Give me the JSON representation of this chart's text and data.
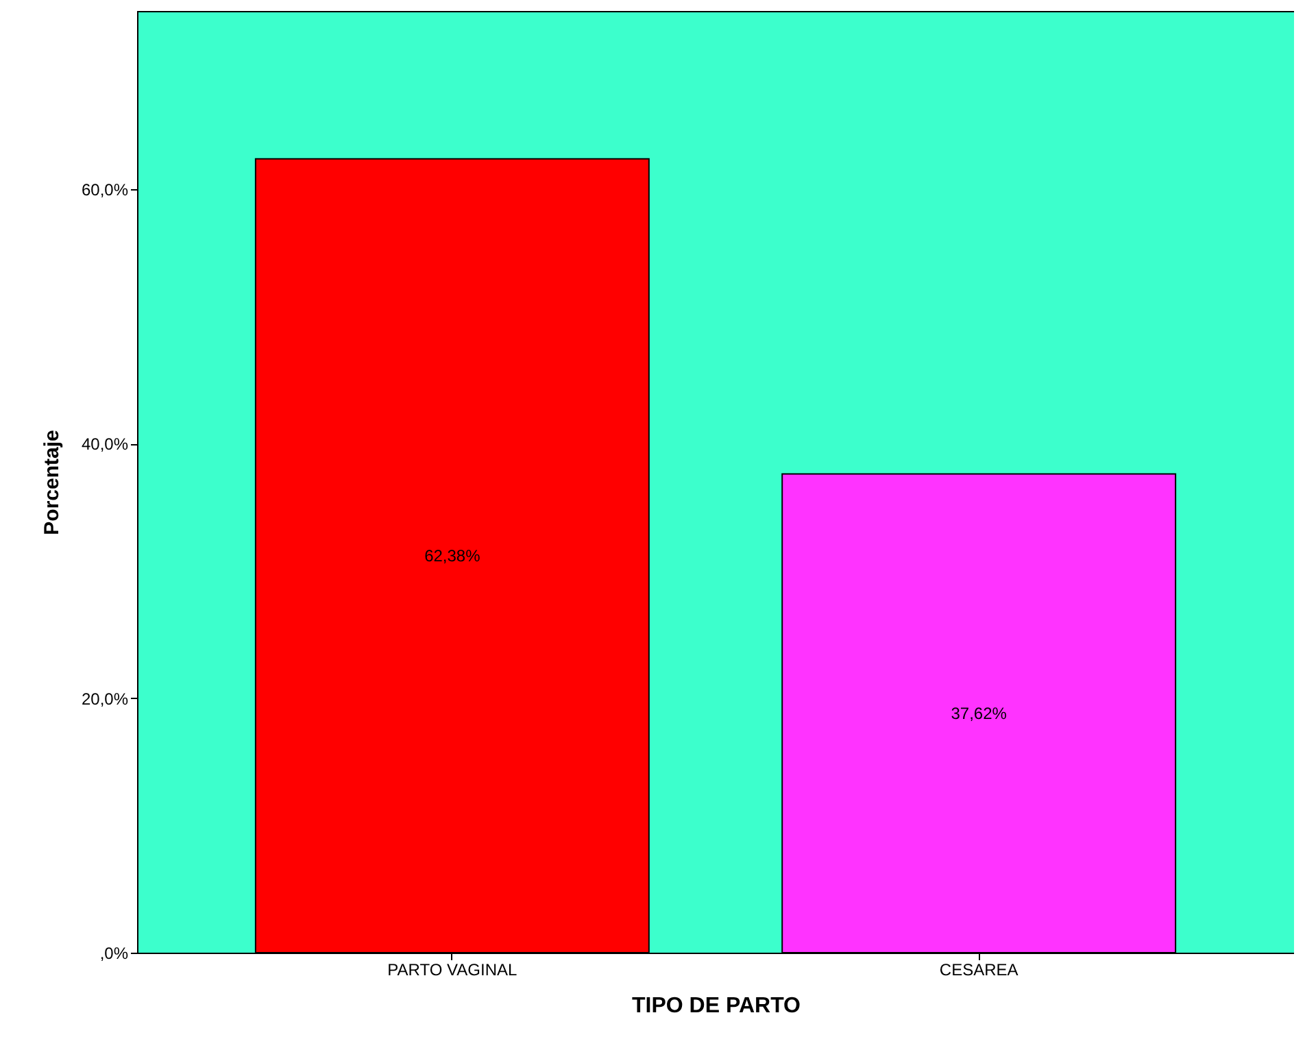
{
  "chart_data": {
    "type": "bar",
    "xlabel": "TIPO DE PARTO",
    "ylabel": "Porcentaje",
    "categories": [
      "PARTO VAGINAL",
      "CESAREA"
    ],
    "values": [
      62.38,
      37.62
    ],
    "colors": [
      "#ff0000",
      "#ff33ff"
    ],
    "value_labels": [
      "62,38%",
      "37,62%"
    ],
    "ylim": [
      0,
      74
    ],
    "yticks": [
      {
        "value": 0,
        "label": ",0%"
      },
      {
        "value": 20,
        "label": "20,0%"
      },
      {
        "value": 40,
        "label": "40,0%"
      },
      {
        "value": 60,
        "label": "60,0%"
      }
    ],
    "grid": false
  }
}
